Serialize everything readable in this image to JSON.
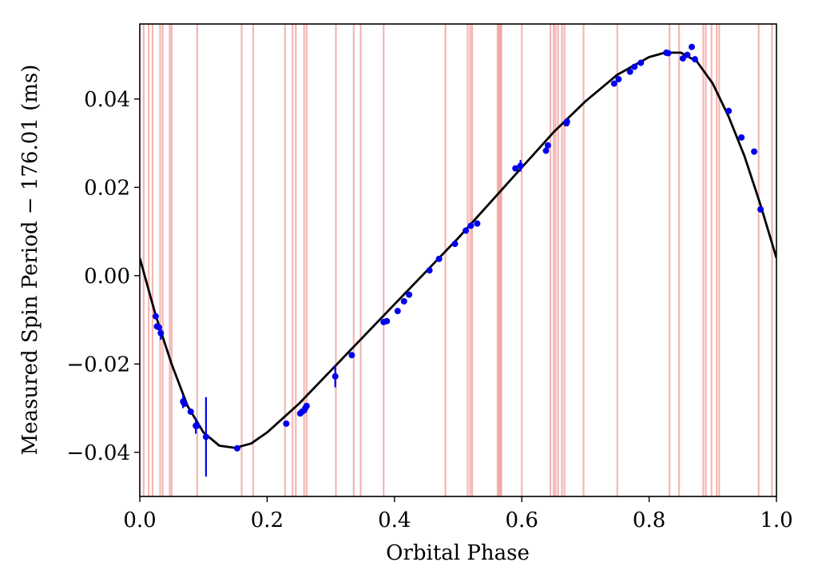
{
  "chart_data": {
    "type": "scatter",
    "title": "",
    "xlabel": "Orbital Phase",
    "ylabel": "Measured Spin Period − 176.01 (ms)",
    "xlim": [
      0.0,
      1.0
    ],
    "ylim": [
      -0.05,
      0.057
    ],
    "xticks": [
      0.0,
      0.2,
      0.4,
      0.6,
      0.8,
      1.0
    ],
    "xtick_labels": [
      "0.0",
      "0.2",
      "0.4",
      "0.6",
      "0.8",
      "1.0"
    ],
    "yticks": [
      -0.04,
      -0.02,
      0.0,
      0.02,
      0.04
    ],
    "ytick_labels": [
      "−0.04",
      "−0.02",
      "0.00",
      "0.02",
      "0.04"
    ],
    "grid": false,
    "colors": {
      "points": "#0000ee",
      "model": "#000000",
      "vlines": "#e8706a"
    },
    "vlines_x": [
      0.006,
      0.014,
      0.02,
      0.032,
      0.036,
      0.047,
      0.05,
      0.09,
      0.16,
      0.178,
      0.228,
      0.24,
      0.245,
      0.258,
      0.262,
      0.308,
      0.336,
      0.347,
      0.383,
      0.48,
      0.515,
      0.519,
      0.522,
      0.562,
      0.564,
      0.566,
      0.568,
      0.6,
      0.645,
      0.65,
      0.653,
      0.657,
      0.663,
      0.667,
      0.697,
      0.75,
      0.832,
      0.847,
      0.885,
      0.889,
      0.898,
      0.906,
      0.91,
      0.972,
      0.993
    ],
    "series": [
      {
        "type": "scatter",
        "x": [
          0.025,
          0.027,
          0.03,
          0.033,
          0.068,
          0.07,
          0.08,
          0.088,
          0.09,
          0.104,
          0.153,
          0.23,
          0.252,
          0.255,
          0.258,
          0.26,
          0.262,
          0.307,
          0.333,
          0.383,
          0.388,
          0.405,
          0.415,
          0.423,
          0.455,
          0.47,
          0.495,
          0.512,
          0.52,
          0.53,
          0.59,
          0.598,
          0.638,
          0.641,
          0.67,
          0.671,
          0.745,
          0.752,
          0.77,
          0.777,
          0.787,
          0.827,
          0.83,
          0.853,
          0.86,
          0.867,
          0.872,
          0.925,
          0.945,
          0.965,
          0.975
        ],
        "y": [
          -0.0092,
          -0.0115,
          -0.0117,
          -0.013,
          -0.0285,
          -0.029,
          -0.0308,
          -0.034,
          -0.034,
          -0.0365,
          -0.0391,
          -0.0335,
          -0.0312,
          -0.0308,
          -0.0305,
          -0.03,
          -0.0295,
          -0.0228,
          -0.018,
          -0.0105,
          -0.0103,
          -0.008,
          -0.0058,
          -0.0043,
          0.0012,
          0.0038,
          0.0072,
          0.0102,
          0.0113,
          0.0118,
          0.0243,
          0.0249,
          0.0283,
          0.0295,
          0.0345,
          0.0349,
          0.0435,
          0.0445,
          0.0462,
          0.0473,
          0.0482,
          0.0505,
          0.0504,
          0.0492,
          0.05,
          0.0518,
          0.049,
          0.0373,
          0.0313,
          0.0281,
          0.015
        ],
        "yerr": [
          0.0,
          0.0,
          0.0,
          0.0015,
          0.0015,
          0.0,
          0.0,
          0.0018,
          0.0,
          0.009,
          0.0,
          0.0,
          0.0,
          0.0,
          0.0,
          0.0,
          0.0,
          0.0025,
          0.0,
          0.0,
          0.0,
          0.0,
          0.0,
          0.0,
          0.0,
          0.0,
          0.0,
          0.0,
          0.0,
          0.0,
          0.0,
          0.0013,
          0.0,
          0.0,
          0.0,
          0.0,
          0.0,
          0.0,
          0.0,
          0.0,
          0.0,
          0.0,
          0.0,
          0.0,
          0.0,
          0.0,
          0.0,
          0.0,
          0.0,
          0.0,
          0.0
        ]
      },
      {
        "type": "line",
        "x": [
          0.0,
          0.025,
          0.05,
          0.075,
          0.1,
          0.125,
          0.15,
          0.175,
          0.2,
          0.25,
          0.3,
          0.35,
          0.4,
          0.45,
          0.5,
          0.55,
          0.6,
          0.65,
          0.7,
          0.75,
          0.8,
          0.825,
          0.85,
          0.875,
          0.9,
          0.925,
          0.95,
          0.975,
          1.0
        ],
        "y": [
          0.004,
          -0.009,
          -0.02,
          -0.0295,
          -0.0355,
          -0.0385,
          -0.039,
          -0.038,
          -0.0355,
          -0.029,
          -0.0215,
          -0.014,
          -0.0065,
          0.001,
          0.0085,
          0.0165,
          0.0245,
          0.0325,
          0.0395,
          0.0455,
          0.0495,
          0.0505,
          0.0505,
          0.0485,
          0.0435,
          0.036,
          0.027,
          0.016,
          0.004
        ]
      }
    ]
  }
}
